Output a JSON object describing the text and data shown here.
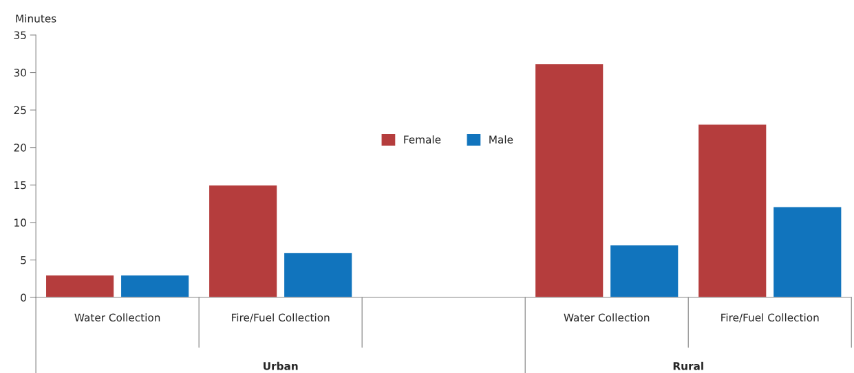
{
  "chart_data": {
    "type": "bar",
    "ylabel": "Minutes",
    "categories": [
      "Water Collection",
      "Fire/Fuel Collection",
      null,
      "Water Collection",
      "Fire/Fuel Collection"
    ],
    "series": [
      {
        "name": "Female",
        "color": "#b53d3d",
        "values": [
          3,
          15,
          null,
          31.2,
          23.1
        ]
      },
      {
        "name": "Male",
        "color": "#1174bd",
        "values": [
          3,
          6,
          null,
          7,
          12.1
        ]
      }
    ],
    "ylim": [
      0,
      35
    ],
    "yticks": [
      0,
      5,
      10,
      15,
      20,
      25,
      30,
      35
    ],
    "grid": false,
    "legend": "center",
    "annotations": [
      "Urban",
      "Rural"
    ]
  }
}
